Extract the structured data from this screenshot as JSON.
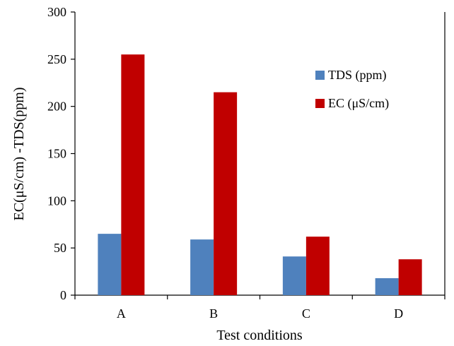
{
  "chart_data": {
    "type": "bar",
    "title": "",
    "xlabel": "Test conditions",
    "ylabel": "EC(μS/cm) -TDS(ppm)",
    "categories": [
      "A",
      "B",
      "C",
      "D"
    ],
    "ylim": [
      0,
      300
    ],
    "yticks": [
      0,
      50,
      100,
      150,
      200,
      250,
      300
    ],
    "grid": false,
    "legend_position": "right",
    "series": [
      {
        "name": "TDS (ppm)",
        "color": "#4f81bd",
        "values": [
          65,
          59,
          41,
          18
        ]
      },
      {
        "name": "EC (μS/cm)",
        "color": "#c00000",
        "values": [
          255,
          215,
          62,
          38
        ]
      }
    ]
  }
}
